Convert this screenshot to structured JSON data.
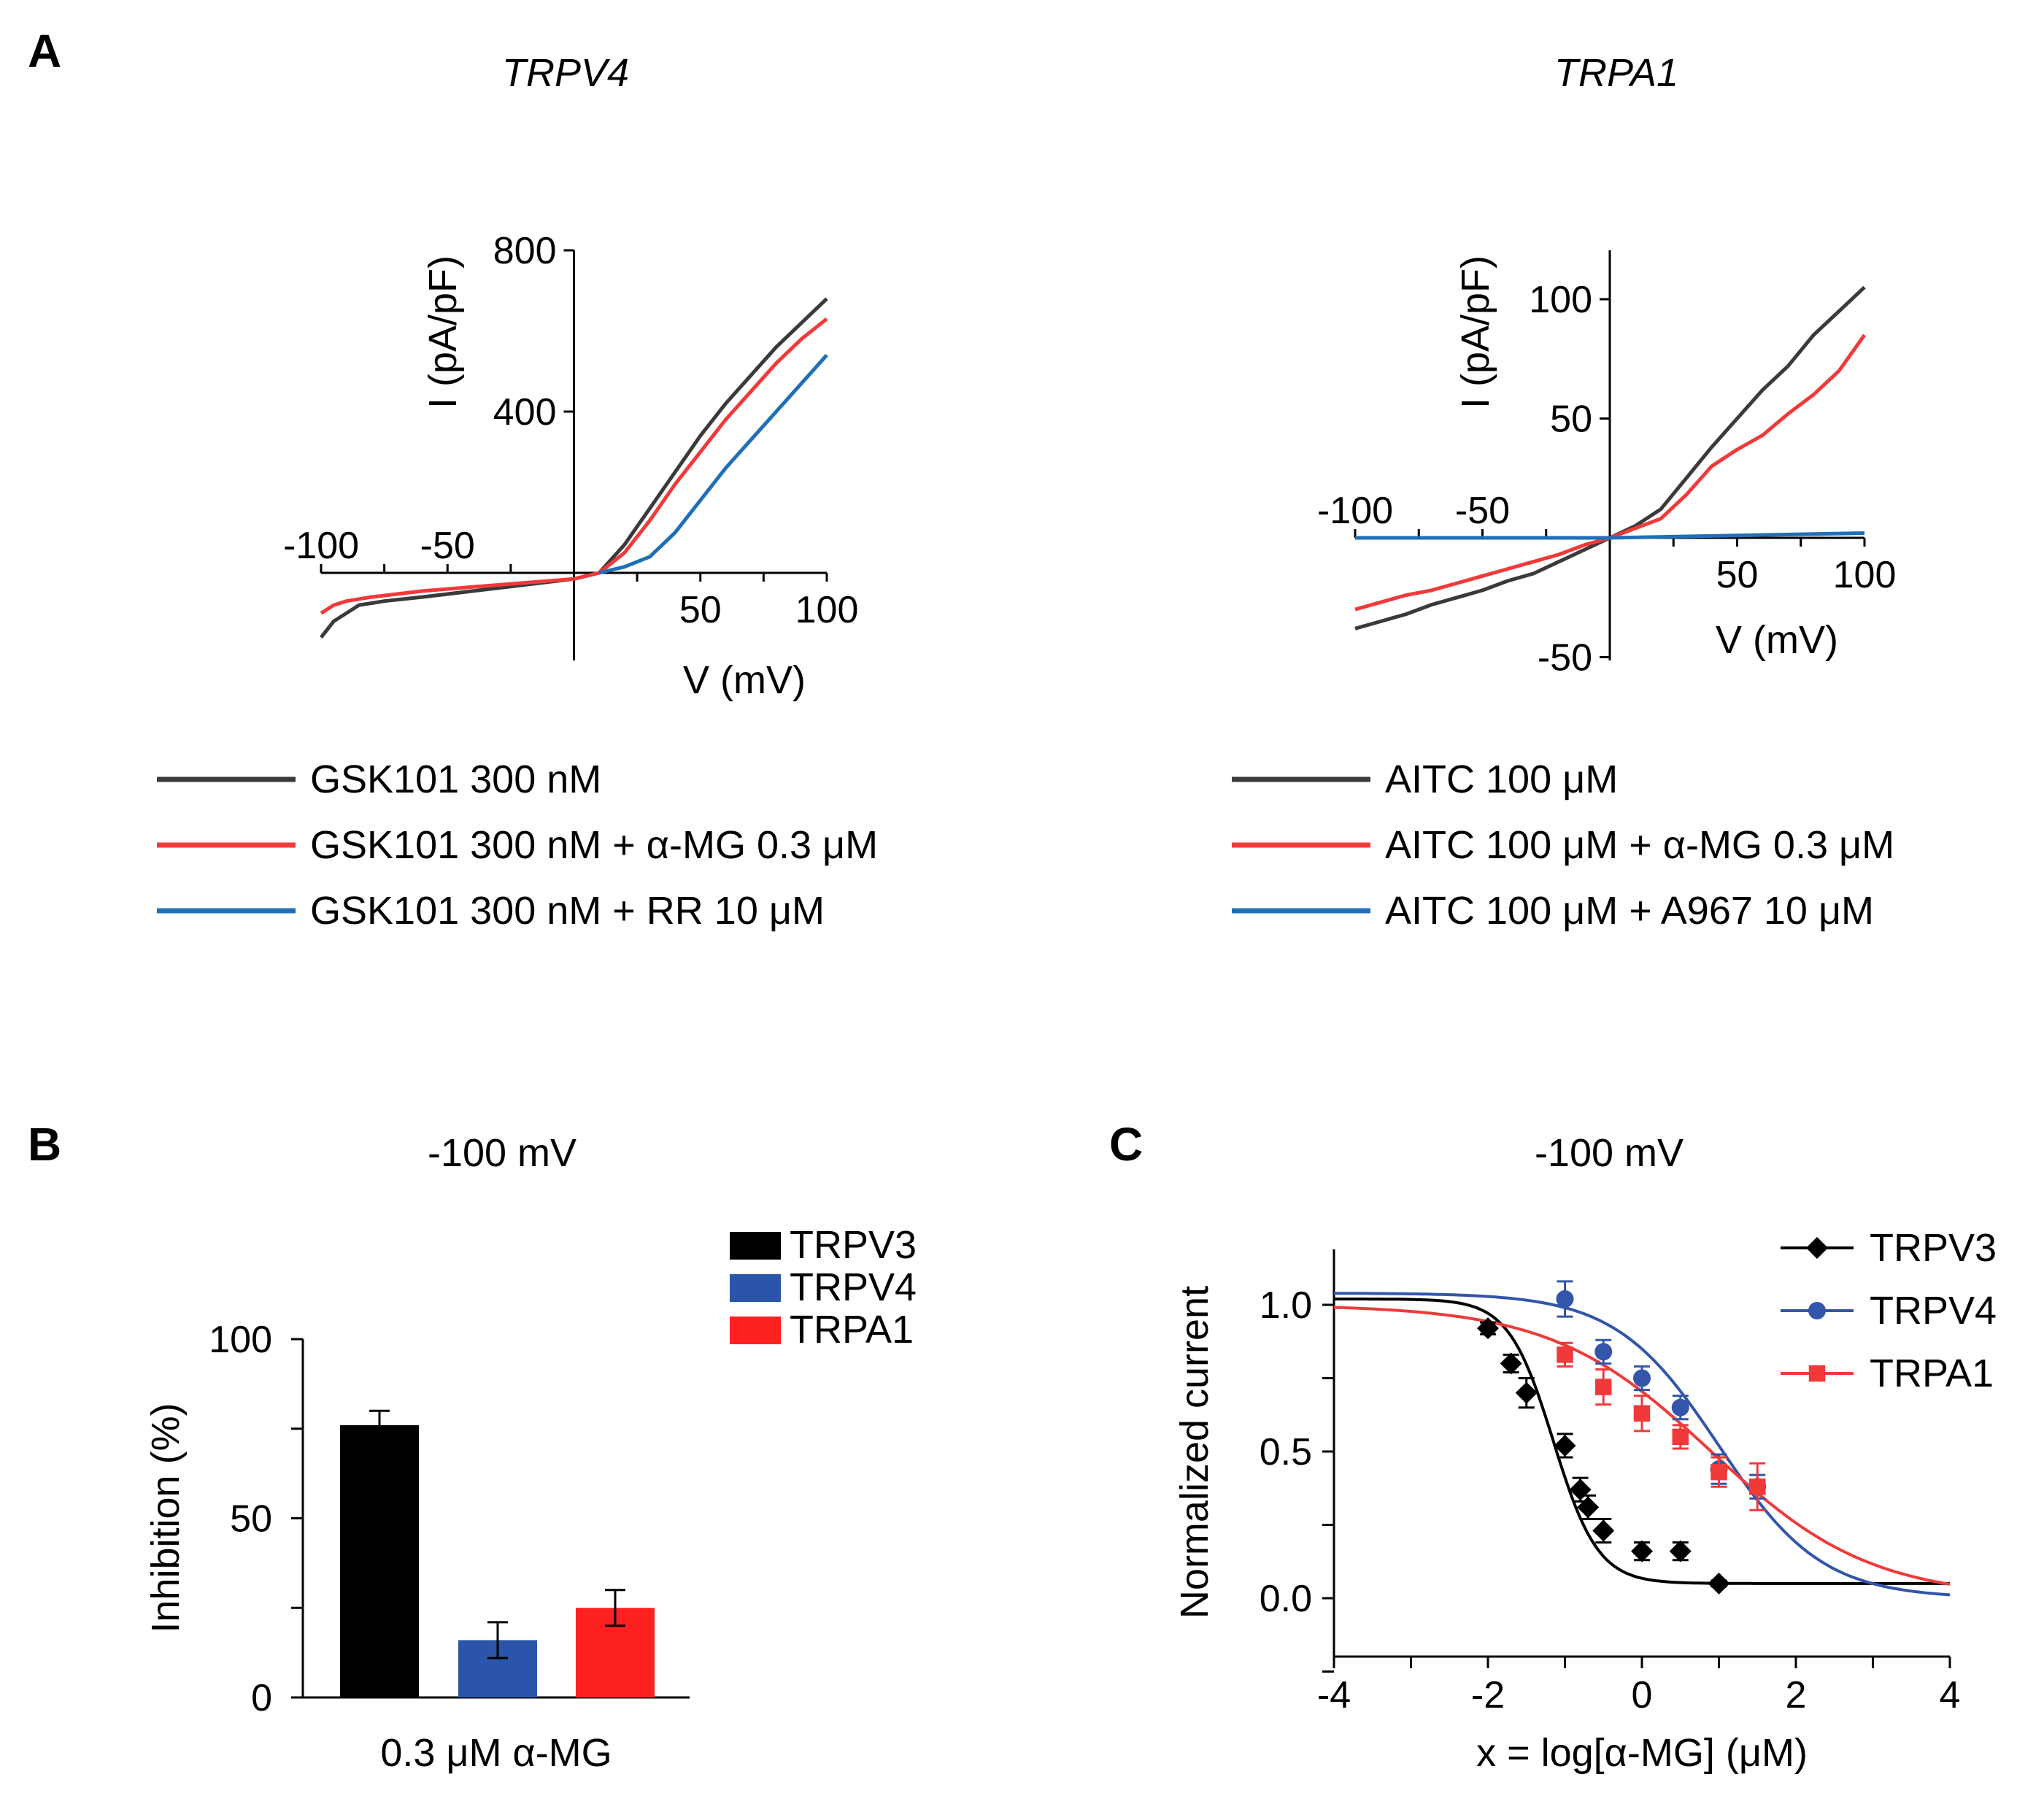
{
  "panels": {
    "A": "A",
    "B": "B",
    "C": "C"
  },
  "colors": {
    "black": "#3a3a3a",
    "red": "#f03a3a",
    "blue": "#1f6fb8",
    "bar_black": "#000000",
    "bar_blue": "#2b55a8",
    "bar_red": "#ff2020",
    "dose_blue": "#3355aa"
  },
  "chart_data": [
    {
      "id": "trpv4_iv",
      "type": "line",
      "title": "TRPV4",
      "xlabel": "V (mV)",
      "ylabel": "I (pA/pF)",
      "xlim": [
        -100,
        100
      ],
      "ylim": [
        -200,
        800
      ],
      "x_ticks": [
        "-100",
        "-50",
        "50",
        "100"
      ],
      "y_ticks": [
        "400",
        "800"
      ],
      "series": [
        {
          "name": "GSK101 300 nM",
          "color": "#3a3a3a",
          "x": [
            -100,
            -95,
            -90,
            -85,
            -75,
            -60,
            -40,
            -20,
            0,
            10,
            20,
            30,
            40,
            50,
            60,
            70,
            80,
            90,
            100
          ],
          "y": [
            -160,
            -120,
            -100,
            -80,
            -70,
            -60,
            -45,
            -30,
            -15,
            0,
            70,
            160,
            250,
            340,
            420,
            490,
            560,
            620,
            680
          ]
        },
        {
          "name": "GSK101 300 nM + α-MG 0.3 μM",
          "color": "#f03a3a",
          "x": [
            -100,
            -95,
            -90,
            -80,
            -60,
            -40,
            -20,
            0,
            10,
            20,
            30,
            40,
            50,
            60,
            70,
            80,
            90,
            100
          ],
          "y": [
            -100,
            -80,
            -70,
            -60,
            -45,
            -35,
            -25,
            -15,
            0,
            50,
            130,
            220,
            300,
            380,
            450,
            520,
            580,
            630
          ]
        },
        {
          "name": "GSK101 300 nM + RR 10 μM",
          "color": "#1f6fb8",
          "x": [
            10,
            20,
            30,
            40,
            50,
            60,
            70,
            80,
            90,
            100
          ],
          "y": [
            0,
            15,
            40,
            100,
            180,
            260,
            330,
            400,
            470,
            540
          ]
        }
      ]
    },
    {
      "id": "trpa1_iv",
      "type": "line",
      "title": "TRPA1",
      "xlabel": "V (mV)",
      "ylabel": "I (pA/pF)",
      "xlim": [
        -100,
        100
      ],
      "ylim": [
        -50,
        100
      ],
      "x_ticks": [
        "-100",
        "-50",
        "50",
        "100"
      ],
      "y_ticks": [
        "-50",
        "50",
        "100"
      ],
      "series": [
        {
          "name": "AITC 100 μM",
          "color": "#3a3a3a",
          "x": [
            -100,
            -90,
            -80,
            -70,
            -60,
            -50,
            -40,
            -30,
            -20,
            -10,
            0,
            10,
            20,
            30,
            40,
            50,
            60,
            70,
            80,
            90,
            100
          ],
          "y": [
            -38,
            -35,
            -32,
            -28,
            -25,
            -22,
            -18,
            -15,
            -10,
            -5,
            0,
            5,
            12,
            25,
            38,
            50,
            62,
            72,
            85,
            95,
            105
          ]
        },
        {
          "name": "AITC 100 μM + α-MG 0.3 μM",
          "color": "#f03a3a",
          "x": [
            -100,
            -90,
            -80,
            -70,
            -60,
            -50,
            -40,
            -30,
            -20,
            -10,
            0,
            10,
            20,
            30,
            40,
            50,
            60,
            70,
            80,
            90,
            100
          ],
          "y": [
            -30,
            -27,
            -24,
            -22,
            -19,
            -16,
            -13,
            -10,
            -7,
            -3,
            0,
            4,
            8,
            18,
            30,
            37,
            43,
            52,
            60,
            70,
            85
          ]
        },
        {
          "name": "AITC 100 μM + A967 10 μM",
          "color": "#1f6fb8",
          "x": [
            -100,
            -50,
            0,
            50,
            100
          ],
          "y": [
            0,
            0,
            0,
            1,
            2
          ]
        }
      ]
    },
    {
      "id": "inhibition_bar",
      "type": "bar",
      "title": "-100 mV",
      "xlabel": "0.3 μM α-MG",
      "ylabel": "Inhibition (%)",
      "ylim": [
        0,
        100
      ],
      "y_ticks": [
        "0",
        "50",
        "100"
      ],
      "categories": [
        "TRPV3",
        "TRPV4",
        "TRPA1"
      ],
      "values": [
        76,
        16,
        25
      ],
      "errors": [
        4,
        5,
        5
      ],
      "legend": [
        "TRPV3",
        "TRPV4",
        "TRPA1"
      ],
      "legend_position": "top-right"
    },
    {
      "id": "dose_response",
      "type": "scatter",
      "title": "-100 mV",
      "xlabel": "x = log[α-MG] (μM)",
      "ylabel": "Normalized current",
      "xlim": [
        -4,
        4
      ],
      "ylim": [
        -0.2,
        1.2
      ],
      "x_ticks": [
        "-4",
        "-2",
        "0",
        "2",
        "4"
      ],
      "y_ticks": [
        "0.0",
        "0.5",
        "1.0"
      ],
      "legend_position": "top-right",
      "series": [
        {
          "name": "TRPV3",
          "color": "#000000",
          "marker": "diamond",
          "x": [
            -2,
            -1.7,
            -1.5,
            -1,
            -0.8,
            -0.7,
            -0.5,
            0,
            0.5,
            1
          ],
          "y": [
            0.92,
            0.8,
            0.7,
            0.52,
            0.37,
            0.31,
            0.23,
            0.16,
            0.16,
            0.05
          ],
          "err": [
            0.02,
            0.03,
            0.05,
            0.04,
            0.04,
            0.04,
            0.04,
            0.03,
            0.03,
            0.01
          ],
          "fit": {
            "top": 1.02,
            "bottom": 0.05,
            "log_ic50": -1.15,
            "hill": 1.5
          }
        },
        {
          "name": "TRPV4",
          "color": "#3355aa",
          "marker": "circle",
          "x": [
            -1,
            -0.5,
            0,
            0.5,
            1,
            1.5
          ],
          "y": [
            1.02,
            0.84,
            0.75,
            0.65,
            0.44,
            0.38
          ],
          "err": [
            0.06,
            0.04,
            0.04,
            0.04,
            0.05,
            0.04
          ],
          "fit": {
            "top": 1.04,
            "bottom": 0.0,
            "log_ic50": 1.0,
            "hill": 0.65
          }
        },
        {
          "name": "TRPA1",
          "color": "#f03a3a",
          "marker": "square",
          "x": [
            -1,
            -0.5,
            0,
            0.5,
            1,
            1.5
          ],
          "y": [
            0.83,
            0.72,
            0.63,
            0.55,
            0.43,
            0.38
          ],
          "err": [
            0.04,
            0.06,
            0.06,
            0.04,
            0.05,
            0.08
          ],
          "fit": {
            "top": 1.0,
            "bottom": 0.0,
            "log_ic50": 0.9,
            "hill": 0.42
          }
        }
      ]
    }
  ]
}
